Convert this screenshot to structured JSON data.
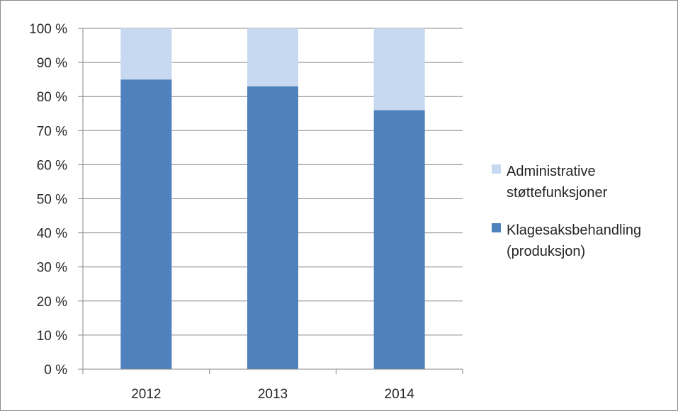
{
  "chart_data": {
    "type": "bar",
    "stacked": true,
    "normalized_percent": true,
    "categories": [
      "2012",
      "2013",
      "2014"
    ],
    "series": [
      {
        "name": "Klagesaksbehandling (produksjon)",
        "legend_lines": [
          "Klagesaksbehandling",
          "(produksjon)"
        ],
        "values": [
          85,
          83,
          76
        ],
        "color": "#4f81bd"
      },
      {
        "name": "Administrative støttefunksjoner",
        "legend_lines": [
          "Administrative",
          "støttefunksjoner"
        ],
        "values": [
          15,
          17,
          24
        ],
        "color": "#c6d9f1"
      }
    ],
    "ylim": [
      0,
      100
    ],
    "y_ticks": [
      "0 %",
      "10 %",
      "20 %",
      "30 %",
      "40 %",
      "50 %",
      "60 %",
      "70 %",
      "80 %",
      "90 %",
      "100 %"
    ],
    "grid": true,
    "legend_position": "right",
    "title": "",
    "xlabel": "",
    "ylabel": ""
  }
}
